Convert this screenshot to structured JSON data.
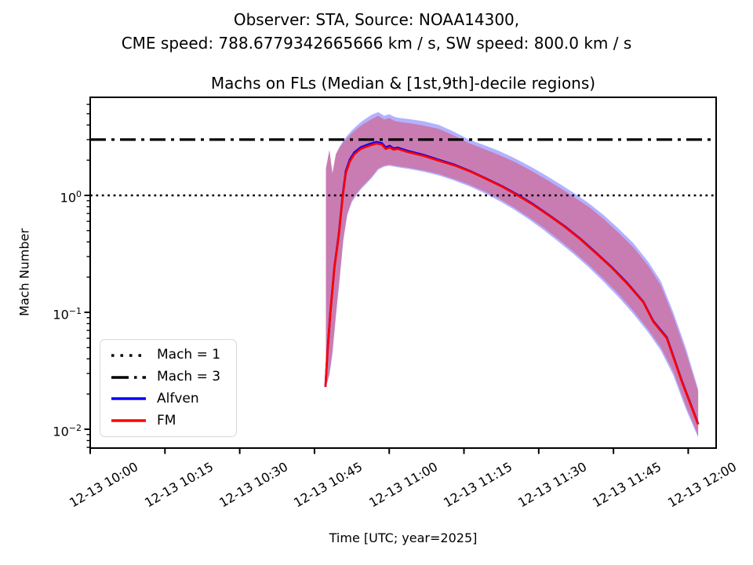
{
  "figure": {
    "suptitle_line1": "Observer: STA, Source: NOAA14300,",
    "suptitle_line2": "CME speed: 788.6779342665666 km / s, SW speed: 800.0 km / s",
    "axes_title": "Machs on FLs (Median & [1st,9th]-decile regions)",
    "xlabel": "Time [UTC; year=2025]",
    "ylabel": "Mach Number",
    "background_color": "#ffffff",
    "axis_color": "#000000"
  },
  "legend": {
    "items": [
      {
        "label": "Mach = 1",
        "style": "dotted",
        "color": "#000000"
      },
      {
        "label": "Mach = 3",
        "style": "dashdot",
        "color": "#000000"
      },
      {
        "label": "Alfven",
        "style": "solid",
        "color": "#0000ff"
      },
      {
        "label": "FM",
        "style": "solid",
        "color": "#ff0000"
      }
    ]
  },
  "chart_data": {
    "type": "line",
    "yscale": "log",
    "grid": false,
    "legend_position": "lower left",
    "x_unit": "minutes after 2025-12-13 10:00 UTC",
    "xlim": [
      0,
      125.6
    ],
    "ylim": [
      0.0069,
      6.9
    ],
    "x_ticks": {
      "t": [
        0,
        15,
        30,
        45,
        60,
        75,
        90,
        105,
        120
      ],
      "labels": [
        "12-13 10:00",
        "12-13 10:15",
        "12-13 10:30",
        "12-13 10:45",
        "12-13 11:00",
        "12-13 11:15",
        "12-13 11:30",
        "12-13 11:45",
        "12-13 12:00"
      ]
    },
    "y_ticks": {
      "values": [
        1,
        0.1,
        0.01
      ],
      "exponents": [
        "0",
        "−1",
        "−2"
      ]
    },
    "hlines": [
      {
        "label": "Mach = 1",
        "y": 1,
        "style": "dotted",
        "color": "#000000"
      },
      {
        "label": "Mach = 3",
        "y": 3,
        "style": "dashdot",
        "color": "#000000"
      }
    ],
    "series": [
      {
        "name": "Alfven",
        "color": "#0000ff",
        "t": [
          47.2,
          47.6,
          48.2,
          49.0,
          49.9,
          50.7,
          51.3,
          52.1,
          53.0,
          54.3,
          55.9,
          57.4,
          58.5,
          59.3,
          60.1,
          60.9,
          61.7,
          63.7,
          66.9,
          70.0,
          73.2,
          76.3,
          79.5,
          82.6,
          85.8,
          88.9,
          92.1,
          95.2,
          98.4,
          101.5,
          104.7,
          107.8,
          111.0,
          113.0,
          115.7,
          118.8,
          122.0
        ],
        "values": [
          0.023,
          0.045,
          0.1,
          0.242,
          0.468,
          1.03,
          1.61,
          2.02,
          2.33,
          2.58,
          2.74,
          2.86,
          2.8,
          2.57,
          2.65,
          2.52,
          2.56,
          2.4,
          2.22,
          2.01,
          1.82,
          1.61,
          1.39,
          1.2,
          1.01,
          0.84,
          0.675,
          0.545,
          0.424,
          0.323,
          0.242,
          0.177,
          0.123,
          0.084,
          0.061,
          0.0253,
          0.0111
        ]
      },
      {
        "name": "FM",
        "color": "#ff0000",
        "t": [
          47.2,
          47.6,
          48.2,
          49.0,
          49.9,
          50.7,
          51.3,
          52.1,
          53.0,
          54.3,
          55.9,
          57.4,
          58.5,
          59.3,
          60.1,
          60.9,
          61.7,
          63.7,
          66.9,
          70.0,
          73.2,
          76.3,
          79.5,
          82.6,
          85.8,
          88.9,
          92.1,
          95.2,
          98.4,
          101.5,
          104.7,
          107.8,
          111.0,
          113.0,
          115.7,
          118.8,
          122.0
        ],
        "values": [
          0.023,
          0.045,
          0.1,
          0.24,
          0.46,
          1.0,
          1.55,
          1.95,
          2.25,
          2.5,
          2.65,
          2.78,
          2.72,
          2.5,
          2.58,
          2.46,
          2.5,
          2.35,
          2.18,
          1.98,
          1.8,
          1.6,
          1.38,
          1.19,
          1.0,
          0.83,
          0.67,
          0.54,
          0.42,
          0.32,
          0.24,
          0.175,
          0.122,
          0.083,
          0.06,
          0.025,
          0.011
        ]
      }
    ],
    "bands": [
      {
        "name": "Alfven 1st-9th decile",
        "color": "#0000ff",
        "opacity": 0.3,
        "t": [
          47.3,
          48.0,
          48.6,
          49.3,
          50.0,
          50.8,
          51.6,
          52.5,
          53.5,
          54.5,
          55.5,
          56.5,
          57.8,
          59.0,
          60.0,
          61.0,
          62.0,
          64.0,
          67.0,
          70.0,
          73.0,
          76.0,
          79.0,
          82.0,
          85.0,
          88.0,
          91.0,
          94.0,
          97.0,
          100.0,
          103.0,
          106.0,
          109.0,
          112.0,
          114.5,
          117.0,
          119.5,
          122.0
        ],
        "hi": [
          1.7,
          2.45,
          1.55,
          2.25,
          2.6,
          2.95,
          3.25,
          3.6,
          3.95,
          4.3,
          4.6,
          4.9,
          5.15,
          4.8,
          4.95,
          4.7,
          4.6,
          4.5,
          4.3,
          4.0,
          3.5,
          3.0,
          2.7,
          2.4,
          2.1,
          1.8,
          1.52,
          1.27,
          1.05,
          0.86,
          0.68,
          0.52,
          0.39,
          0.27,
          0.185,
          0.1,
          0.05,
          0.022
        ],
        "lo": [
          0.023,
          0.029,
          0.044,
          0.091,
          0.182,
          0.415,
          0.68,
          0.875,
          1.02,
          1.15,
          1.27,
          1.41,
          1.66,
          1.76,
          1.79,
          1.76,
          1.73,
          1.68,
          1.59,
          1.48,
          1.34,
          1.2,
          1.05,
          0.9,
          0.76,
          0.625,
          0.505,
          0.4,
          0.315,
          0.243,
          0.183,
          0.135,
          0.097,
          0.067,
          0.047,
          0.029,
          0.015,
          0.0085
        ]
      },
      {
        "name": "FM 1st-9th decile",
        "color": "#ff0000",
        "opacity": 0.3,
        "t": [
          47.3,
          48.0,
          48.6,
          49.3,
          50.0,
          50.8,
          51.6,
          52.5,
          53.5,
          54.5,
          55.5,
          56.5,
          57.8,
          59.0,
          60.0,
          61.0,
          62.0,
          64.0,
          67.0,
          70.0,
          73.0,
          76.0,
          79.0,
          82.0,
          85.0,
          88.0,
          91.0,
          94.0,
          97.0,
          100.0,
          103.0,
          106.0,
          109.0,
          112.0,
          114.5,
          117.0,
          119.5,
          122.0
        ],
        "hi": [
          1.7,
          2.45,
          1.55,
          2.25,
          2.55,
          2.85,
          3.1,
          3.4,
          3.7,
          4.0,
          4.25,
          4.5,
          4.8,
          4.45,
          4.6,
          4.35,
          4.25,
          4.15,
          3.95,
          3.7,
          3.25,
          2.8,
          2.5,
          2.22,
          1.95,
          1.67,
          1.41,
          1.18,
          0.97,
          0.8,
          0.63,
          0.48,
          0.36,
          0.25,
          0.17,
          0.092,
          0.046,
          0.021
        ],
        "lo": [
          0.023,
          0.03,
          0.046,
          0.095,
          0.19,
          0.43,
          0.7,
          0.9,
          1.05,
          1.18,
          1.3,
          1.45,
          1.7,
          1.8,
          1.83,
          1.8,
          1.77,
          1.72,
          1.63,
          1.52,
          1.38,
          1.24,
          1.09,
          0.94,
          0.79,
          0.65,
          0.53,
          0.42,
          0.33,
          0.255,
          0.193,
          0.143,
          0.103,
          0.071,
          0.05,
          0.031,
          0.016,
          0.0088
        ]
      }
    ]
  }
}
